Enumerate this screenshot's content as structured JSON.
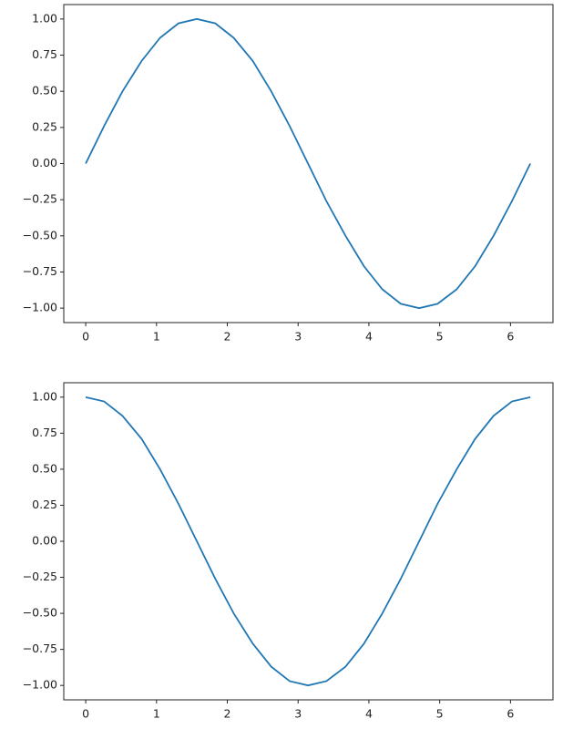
{
  "chart_data": [
    {
      "type": "line",
      "color": "#1f77b4",
      "x": [
        0,
        0.26,
        0.52,
        0.79,
        1.05,
        1.31,
        1.57,
        1.83,
        2.09,
        2.36,
        2.62,
        2.88,
        3.14,
        3.4,
        3.67,
        3.93,
        4.19,
        4.45,
        4.71,
        4.97,
        5.24,
        5.5,
        5.76,
        6.02,
        6.28
      ],
      "values": [
        0,
        0.26,
        0.5,
        0.71,
        0.87,
        0.97,
        1,
        0.97,
        0.87,
        0.71,
        0.5,
        0.26,
        0,
        -0.26,
        -0.5,
        -0.71,
        -0.87,
        -0.97,
        -1,
        -0.97,
        -0.87,
        -0.71,
        -0.5,
        -0.26,
        0
      ],
      "xlim": [
        -0.31,
        6.6
      ],
      "xticks": [
        0,
        1,
        2,
        3,
        4,
        5,
        6
      ],
      "ylim": [
        -1.1,
        1.1
      ],
      "yticks": [
        {
          "value": -1,
          "label": "−1.00"
        },
        {
          "value": -0.75,
          "label": "−0.75"
        },
        {
          "value": -0.5,
          "label": "−0.50"
        },
        {
          "value": -0.25,
          "label": "−0.25"
        },
        {
          "value": 0,
          "label": "0.00"
        },
        {
          "value": 0.25,
          "label": "0.25"
        },
        {
          "value": 0.5,
          "label": "0.50"
        },
        {
          "value": 0.75,
          "label": "0.75"
        },
        {
          "value": 1,
          "label": "1.00"
        }
      ]
    },
    {
      "type": "line",
      "color": "#1f77b4",
      "x": [
        0,
        0.26,
        0.52,
        0.79,
        1.05,
        1.31,
        1.57,
        1.83,
        2.09,
        2.36,
        2.62,
        2.88,
        3.14,
        3.4,
        3.67,
        3.93,
        4.19,
        4.45,
        4.71,
        4.97,
        5.24,
        5.5,
        5.76,
        6.02,
        6.28
      ],
      "values": [
        1,
        0.97,
        0.87,
        0.71,
        0.5,
        0.26,
        0,
        -0.26,
        -0.5,
        -0.71,
        -0.87,
        -0.97,
        -1,
        -0.97,
        -0.87,
        -0.71,
        -0.5,
        -0.26,
        0,
        0.26,
        0.5,
        0.71,
        0.87,
        0.97,
        1
      ],
      "xlim": [
        -0.31,
        6.6
      ],
      "xticks": [
        0,
        1,
        2,
        3,
        4,
        5,
        6
      ],
      "ylim": [
        -1.1,
        1.1
      ],
      "yticks": [
        {
          "value": -1,
          "label": "−1.00"
        },
        {
          "value": -0.75,
          "label": "−0.75"
        },
        {
          "value": -0.5,
          "label": "−0.50"
        },
        {
          "value": -0.25,
          "label": "−0.25"
        },
        {
          "value": 0,
          "label": "0.00"
        },
        {
          "value": 0.25,
          "label": "0.25"
        },
        {
          "value": 0.5,
          "label": "0.50"
        },
        {
          "value": 0.75,
          "label": "0.75"
        },
        {
          "value": 1,
          "label": "1.00"
        }
      ]
    }
  ]
}
